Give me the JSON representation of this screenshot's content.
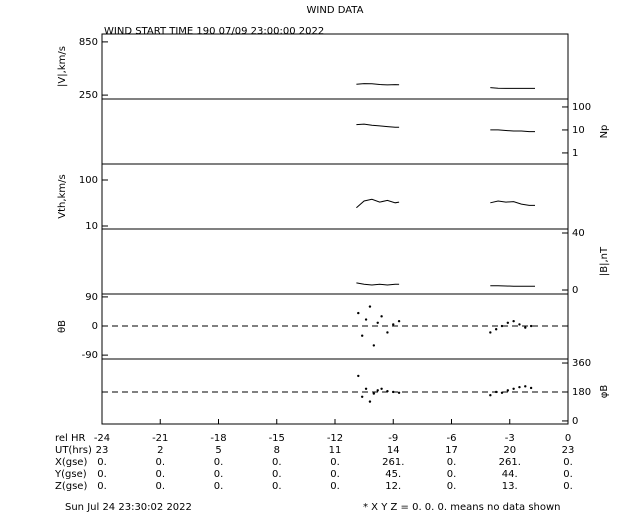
{
  "title": "WIND DATA",
  "subtitle": "WIND START TIME 190 07/09 23:00:00 2022",
  "x_axis": {
    "label": "rel HR",
    "xlim": [
      -24,
      0
    ],
    "xticks": [
      -24,
      -21,
      -18,
      -15,
      -12,
      -9,
      -6,
      -3,
      0
    ]
  },
  "table": {
    "rows": [
      {
        "label": "UT(hrs)",
        "values": [
          "23",
          "2",
          "5",
          "8",
          "11",
          "14",
          "17",
          "20",
          "23"
        ]
      },
      {
        "label": "X(gse)",
        "values": [
          "0.",
          "0.",
          "0.",
          "0.",
          "0.",
          "261.",
          "0.",
          "261.",
          "0."
        ]
      },
      {
        "label": "Y(gse)",
        "values": [
          "0.",
          "0.",
          "0.",
          "0.",
          "0.",
          "45.",
          "0.",
          "44.",
          "0."
        ]
      },
      {
        "label": "Z(gse)",
        "values": [
          "0.",
          "0.",
          "0.",
          "0.",
          "0.",
          "12.",
          "0.",
          "13.",
          "0."
        ]
      }
    ]
  },
  "footer_left": "Sun Jul 24 23:30:02 2022",
  "footer_right": "* X Y Z = 0. 0. 0. means no data shown",
  "chart_data": [
    {
      "type": "line",
      "ylabel": "|V|,km/s",
      "side": "left",
      "log": false,
      "ylim": [
        206,
        939
      ],
      "yticks": [
        250,
        850
      ],
      "color": "#000000",
      "x": [
        -10.9,
        -10.5,
        -10.1,
        -9.7,
        -9.3,
        -8.9,
        -8.7,
        null,
        -4.0,
        -3.6,
        -3.2,
        -2.8,
        -2.4,
        -2.0,
        -1.7
      ],
      "values": [
        372,
        380,
        378,
        370,
        365,
        368,
        366,
        null,
        335,
        328,
        326,
        326,
        326,
        326,
        326
      ]
    },
    {
      "type": "line",
      "ylabel": "Np",
      "side": "right",
      "log": true,
      "ylim": [
        0.33,
        222
      ],
      "yticks": [
        1,
        10,
        100
      ],
      "color": "#000000",
      "x": [
        -10.9,
        -10.5,
        -10.1,
        -9.7,
        -9.3,
        -8.9,
        -8.7,
        null,
        -4.0,
        -3.6,
        -3.2,
        -2.8,
        -2.4,
        -2.0,
        -1.7
      ],
      "values": [
        17,
        18,
        16,
        15,
        14,
        13,
        13,
        null,
        10,
        10,
        9.5,
        9,
        9,
        8.5,
        8.5
      ]
    },
    {
      "type": "line",
      "ylabel": "Vth,km/s",
      "side": "left",
      "log": true,
      "ylim": [
        8.6,
        223
      ],
      "yticks": [
        10,
        100
      ],
      "color": "#000000",
      "x": [
        -10.9,
        -10.5,
        -10.1,
        -9.7,
        -9.3,
        -8.9,
        -8.7,
        null,
        -4.0,
        -3.6,
        -3.2,
        -2.8,
        -2.4,
        -2.0,
        -1.7
      ],
      "values": [
        25,
        35,
        38,
        33,
        36,
        32,
        33,
        null,
        32,
        35,
        33,
        34,
        30,
        28,
        28
      ]
    },
    {
      "type": "line",
      "ylabel": "|B|,nT",
      "side": "right",
      "log": false,
      "ylim": [
        -2.8,
        42.8
      ],
      "yticks": [
        0,
        40
      ],
      "color": "#000000",
      "x": [
        -10.9,
        -10.5,
        -10.1,
        -9.7,
        -9.3,
        -8.9,
        -8.7,
        null,
        -4.0,
        -3.6,
        -3.2,
        -2.8,
        -2.4,
        -2.0,
        -1.7
      ],
      "values": [
        5,
        4,
        3.5,
        4,
        3.5,
        4,
        4,
        null,
        3,
        3,
        2.8,
        2.7,
        2.6,
        2.6,
        2.6
      ]
    },
    {
      "type": "scatter",
      "ylabel": "θB",
      "side": "left",
      "log": false,
      "ylim": [
        -102,
        99
      ],
      "yticks": [
        -90,
        0,
        90
      ],
      "refline": 0,
      "color": "#000000",
      "x": [
        -10.8,
        -10.6,
        -10.4,
        -10.2,
        -10.0,
        -9.8,
        -9.6,
        -9.3,
        -9.0,
        -8.7,
        -4.0,
        -3.7,
        -3.4,
        -3.1,
        -2.8,
        -2.5,
        -2.2,
        -1.9
      ],
      "values": [
        40,
        -30,
        20,
        60,
        -60,
        10,
        30,
        -20,
        5,
        15,
        -20,
        -10,
        0,
        10,
        15,
        5,
        -5,
        0
      ]
    },
    {
      "type": "scatter",
      "ylabel": "φB",
      "side": "right",
      "log": false,
      "ylim": [
        -19,
        385
      ],
      "yticks": [
        0,
        180,
        360
      ],
      "refline": 180,
      "color": "#000000",
      "x": [
        -10.8,
        -10.6,
        -10.4,
        -10.2,
        -10.0,
        -9.8,
        -9.6,
        -9.3,
        -9.0,
        -8.7,
        -4.0,
        -3.7,
        -3.4,
        -3.1,
        -2.8,
        -2.5,
        -2.2,
        -1.9
      ],
      "values": [
        280,
        150,
        200,
        120,
        170,
        190,
        200,
        185,
        180,
        175,
        160,
        180,
        175,
        190,
        200,
        210,
        215,
        205
      ]
    }
  ]
}
